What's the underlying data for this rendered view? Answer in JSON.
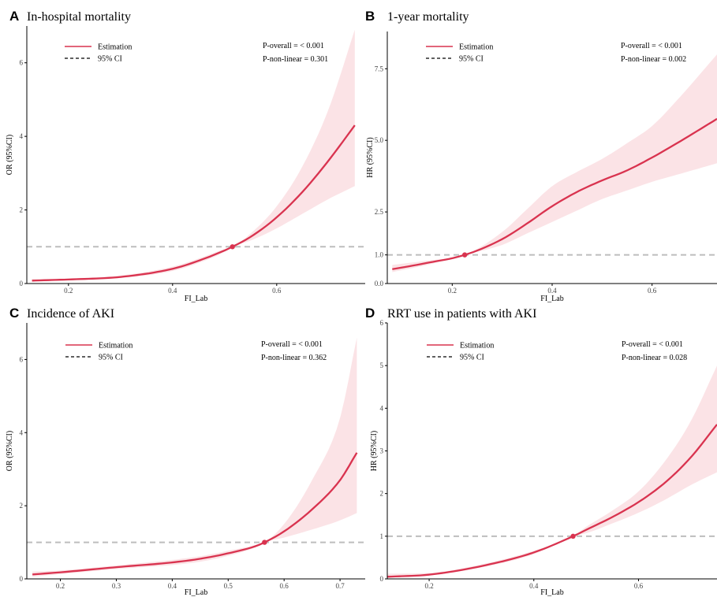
{
  "colors": {
    "estimate": "#d9334f",
    "ci_band": "#fbe3e6",
    "reference": "#bdbdbd",
    "axis": "#000000"
  },
  "chart_data": [
    {
      "id": "A",
      "letter": "A",
      "type": "line",
      "title": "In-hospital mortality",
      "xlabel": "FI_Lab",
      "ylabel": "OR (95%CI)",
      "xlim": [
        0.12,
        0.77
      ],
      "ylim": [
        0,
        7
      ],
      "xticks": [
        0.2,
        0.4,
        0.6
      ],
      "xtick_labels": [
        "0.2",
        "0.4",
        "0.6"
      ],
      "yticks": [
        0,
        2,
        4,
        6
      ],
      "ytick_labels": [
        "0",
        "2",
        "4",
        "6"
      ],
      "reference_y": 1,
      "reference_point": [
        0.515,
        1.0
      ],
      "legend": {
        "estimate_label": "Estimation",
        "ci_label": "95% CI",
        "position": "top-left"
      },
      "stats": [
        "P-overall = < 0.001",
        "P-non-linear = 0.301"
      ],
      "x": [
        0.13,
        0.2,
        0.3,
        0.4,
        0.45,
        0.5,
        0.515,
        0.55,
        0.6,
        0.65,
        0.7,
        0.75
      ],
      "estimate": [
        0.08,
        0.11,
        0.18,
        0.4,
        0.62,
        0.9,
        1.0,
        1.27,
        1.8,
        2.5,
        3.35,
        4.3
      ],
      "ci_lower": [
        0.05,
        0.09,
        0.15,
        0.34,
        0.56,
        0.86,
        1.0,
        1.17,
        1.5,
        1.9,
        2.3,
        2.65
      ],
      "ci_upper": [
        0.12,
        0.14,
        0.22,
        0.46,
        0.68,
        0.94,
        1.0,
        1.36,
        2.1,
        3.2,
        4.75,
        6.9
      ]
    },
    {
      "id": "B",
      "letter": "B",
      "type": "line",
      "title": "1-year mortality",
      "xlabel": "FI_Lab",
      "ylabel": "HR (95%CI)",
      "xlim": [
        0.07,
        0.73
      ],
      "ylim": [
        0,
        8.8
      ],
      "xticks": [
        0.2,
        0.4,
        0.6
      ],
      "xtick_labels": [
        "0.2",
        "0.4",
        "0.6"
      ],
      "yticks": [
        0,
        1,
        2.5,
        5,
        7.5
      ],
      "ytick_labels": [
        "0.0",
        "1.0",
        "2.5",
        "5.0",
        "7.5"
      ],
      "reference_y": 1,
      "reference_point": [
        0.225,
        1.0
      ],
      "legend": {
        "estimate_label": "Estimation",
        "ci_label": "95% CI",
        "position": "top-left"
      },
      "stats": [
        "P-overall = < 0.001",
        "P-non-linear = 0.002"
      ],
      "x": [
        0.08,
        0.15,
        0.225,
        0.3,
        0.35,
        0.4,
        0.45,
        0.5,
        0.55,
        0.6,
        0.65,
        0.73
      ],
      "estimate": [
        0.5,
        0.72,
        1.0,
        1.55,
        2.1,
        2.7,
        3.2,
        3.6,
        3.95,
        4.4,
        4.9,
        5.75
      ],
      "ci_lower": [
        0.4,
        0.65,
        1.0,
        1.35,
        1.75,
        2.15,
        2.55,
        2.95,
        3.25,
        3.55,
        3.8,
        4.2
      ],
      "ci_upper": [
        0.65,
        0.8,
        1.0,
        1.8,
        2.6,
        3.4,
        3.9,
        4.35,
        4.9,
        5.5,
        6.4,
        8.0
      ]
    },
    {
      "id": "C",
      "letter": "C",
      "type": "line",
      "title": "Incidence of AKI",
      "xlabel": "FI_Lab",
      "ylabel": "OR (95%CI)",
      "xlim": [
        0.14,
        0.745
      ],
      "ylim": [
        0,
        7
      ],
      "xticks": [
        0.2,
        0.3,
        0.4,
        0.5,
        0.6,
        0.7
      ],
      "xtick_labels": [
        "0.2",
        "0.3",
        "0.4",
        "0.5",
        "0.6",
        "0.7"
      ],
      "yticks": [
        0,
        2,
        4,
        6
      ],
      "ytick_labels": [
        "0",
        "2",
        "4",
        "6"
      ],
      "reference_y": 1,
      "reference_point": [
        0.565,
        1.0
      ],
      "legend": {
        "estimate_label": "Estimation",
        "ci_label": "95% CI",
        "position": "top-left"
      },
      "stats": [
        "P-overall = < 0.001",
        "P-non-linear = 0.362"
      ],
      "x": [
        0.15,
        0.2,
        0.3,
        0.4,
        0.45,
        0.5,
        0.55,
        0.565,
        0.6,
        0.65,
        0.7,
        0.73
      ],
      "estimate": [
        0.12,
        0.18,
        0.32,
        0.45,
        0.55,
        0.7,
        0.9,
        1.0,
        1.3,
        1.9,
        2.7,
        3.45
      ],
      "ci_lower": [
        0.06,
        0.13,
        0.27,
        0.38,
        0.47,
        0.63,
        0.87,
        1.0,
        1.13,
        1.35,
        1.6,
        1.8
      ],
      "ci_upper": [
        0.2,
        0.23,
        0.37,
        0.52,
        0.62,
        0.77,
        0.93,
        1.0,
        1.5,
        2.7,
        4.4,
        6.6
      ]
    },
    {
      "id": "D",
      "letter": "D",
      "type": "line",
      "title": "RRT use in patients with AKI",
      "xlabel": "FI_Lab",
      "ylabel": "HR (95%CI)",
      "xlim": [
        0.12,
        0.75
      ],
      "ylim": [
        0,
        6
      ],
      "xticks": [
        0.2,
        0.4,
        0.6
      ],
      "xtick_labels": [
        "0.2",
        "0.4",
        "0.6"
      ],
      "yticks": [
        0,
        1,
        2,
        3,
        4,
        5,
        6
      ],
      "ytick_labels": [
        "0",
        "1",
        "2",
        "3",
        "4",
        "5",
        "6"
      ],
      "reference_y": 1,
      "reference_point": [
        0.475,
        1.0
      ],
      "legend": {
        "estimate_label": "Estimation",
        "ci_label": "95% CI",
        "position": "top-left"
      },
      "stats": [
        "P-overall = < 0.001",
        "P-non-linear = 0.028"
      ],
      "x": [
        0.12,
        0.2,
        0.3,
        0.4,
        0.475,
        0.5,
        0.55,
        0.6,
        0.65,
        0.7,
        0.75
      ],
      "estimate": [
        0.05,
        0.1,
        0.3,
        0.62,
        1.0,
        1.15,
        1.45,
        1.8,
        2.25,
        2.85,
        3.62
      ],
      "ci_lower": [
        0.03,
        0.08,
        0.27,
        0.58,
        1.0,
        1.07,
        1.3,
        1.55,
        1.85,
        2.2,
        2.5
      ],
      "ci_upper": [
        0.12,
        0.14,
        0.34,
        0.66,
        1.0,
        1.22,
        1.6,
        2.05,
        2.75,
        3.7,
        5.0
      ]
    }
  ]
}
